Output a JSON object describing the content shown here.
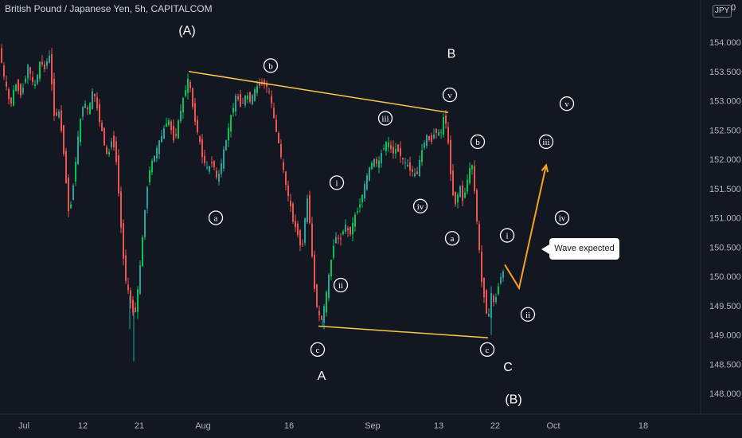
{
  "header": {
    "title": "British Pound / Japanese Yen, 5h, CAPITALCOM",
    "currency": "JPY",
    "currency_top": "0"
  },
  "colors": {
    "up": "#26a69a",
    "up_bright": "#00c853",
    "down": "#ef5350",
    "trendline": "#f9c74f",
    "forecast": "#f7a21b",
    "axis_text": "#b2b5be",
    "label": "#ffffff",
    "background": "#131722"
  },
  "callout": {
    "text": "Wave expected"
  },
  "chart_data": {
    "type": "candlestick",
    "title": "British Pound / Japanese Yen, 5h, CAPITALCOM",
    "y_axis": {
      "unit": "JPY",
      "ticks": [
        "154.000",
        "153.500",
        "153.000",
        "152.500",
        "152.000",
        "151.500",
        "151.000",
        "150.500",
        "150.000",
        "149.500",
        "149.000",
        "148.500",
        "148.000"
      ],
      "range": [
        147.7,
        154.4
      ]
    },
    "x_axis": {
      "ticks": [
        "Jul",
        "12",
        "21",
        "Aug",
        "16",
        "Sep",
        "13",
        "22",
        "Oct",
        "18"
      ]
    },
    "price_path": [
      [
        0,
        153.9
      ],
      [
        6,
        153.4
      ],
      [
        14,
        152.9
      ],
      [
        20,
        153.3
      ],
      [
        28,
        153.1
      ],
      [
        36,
        153.6
      ],
      [
        44,
        153.2
      ],
      [
        52,
        153.7
      ],
      [
        58,
        153.5
      ],
      [
        62,
        153.9
      ],
      [
        66,
        153.3
      ],
      [
        70,
        152.6
      ],
      [
        74,
        152.9
      ],
      [
        80,
        152.3
      ],
      [
        84,
        151.6
      ],
      [
        88,
        151.0
      ],
      [
        94,
        151.7
      ],
      [
        100,
        152.5
      ],
      [
        106,
        153.0
      ],
      [
        112,
        152.8
      ],
      [
        118,
        153.2
      ],
      [
        124,
        152.8
      ],
      [
        130,
        152.4
      ],
      [
        136,
        152.0
      ],
      [
        142,
        152.4
      ],
      [
        148,
        151.9
      ],
      [
        152,
        151.0
      ],
      [
        158,
        150.0
      ],
      [
        164,
        149.6
      ],
      [
        170,
        149.3
      ],
      [
        176,
        150.0
      ],
      [
        182,
        151.0
      ],
      [
        188,
        151.8
      ],
      [
        196,
        152.1
      ],
      [
        204,
        152.4
      ],
      [
        212,
        152.7
      ],
      [
        220,
        152.3
      ],
      [
        226,
        152.7
      ],
      [
        232,
        153.1
      ],
      [
        238,
        153.4
      ],
      [
        244,
        152.8
      ],
      [
        250,
        152.4
      ],
      [
        256,
        152.0
      ],
      [
        262,
        151.8
      ],
      [
        268,
        152.0
      ],
      [
        274,
        151.6
      ],
      [
        280,
        152.0
      ],
      [
        286,
        152.4
      ],
      [
        292,
        152.8
      ],
      [
        298,
        153.1
      ],
      [
        304,
        152.9
      ],
      [
        310,
        153.1
      ],
      [
        316,
        153.0
      ],
      [
        322,
        153.2
      ],
      [
        328,
        153.3
      ],
      [
        334,
        153.3
      ],
      [
        340,
        153.1
      ],
      [
        346,
        152.6
      ],
      [
        352,
        152.2
      ],
      [
        358,
        151.7
      ],
      [
        364,
        151.3
      ],
      [
        370,
        150.9
      ],
      [
        376,
        150.7
      ],
      [
        380,
        150.4
      ],
      [
        384,
        151.0
      ],
      [
        388,
        151.4
      ],
      [
        392,
        150.5
      ],
      [
        396,
        149.8
      ],
      [
        400,
        149.4
      ],
      [
        404,
        149.2
      ],
      [
        410,
        149.6
      ],
      [
        416,
        150.2
      ],
      [
        422,
        150.7
      ],
      [
        428,
        150.6
      ],
      [
        434,
        150.9
      ],
      [
        440,
        150.7
      ],
      [
        446,
        151.0
      ],
      [
        452,
        151.2
      ],
      [
        458,
        151.5
      ],
      [
        464,
        151.8
      ],
      [
        470,
        152.0
      ],
      [
        476,
        151.9
      ],
      [
        482,
        152.2
      ],
      [
        488,
        152.3
      ],
      [
        494,
        152.1
      ],
      [
        500,
        152.2
      ],
      [
        506,
        152.0
      ],
      [
        512,
        151.9
      ],
      [
        518,
        151.8
      ],
      [
        524,
        151.7
      ],
      [
        530,
        152.1
      ],
      [
        536,
        152.4
      ],
      [
        542,
        152.3
      ],
      [
        548,
        152.5
      ],
      [
        554,
        152.4
      ],
      [
        558,
        152.7
      ],
      [
        562,
        152.6
      ],
      [
        566,
        151.9
      ],
      [
        570,
        151.4
      ],
      [
        574,
        151.2
      ],
      [
        578,
        151.6
      ],
      [
        582,
        151.3
      ],
      [
        586,
        151.5
      ],
      [
        590,
        151.8
      ],
      [
        594,
        151.9
      ],
      [
        598,
        151.3
      ],
      [
        602,
        150.6
      ],
      [
        606,
        149.9
      ],
      [
        610,
        149.6
      ],
      [
        614,
        149.2
      ],
      [
        618,
        149.7
      ],
      [
        622,
        149.5
      ],
      [
        626,
        149.8
      ],
      [
        630,
        150.0
      ],
      [
        634,
        150.1
      ]
    ],
    "wicks_extra": [
      {
        "x": 168,
        "low": 148.55
      },
      {
        "x": 163,
        "low": 149.1
      },
      {
        "x": 405,
        "low": 149.15
      },
      {
        "x": 617,
        "low": 149.0
      }
    ],
    "trendlines": [
      {
        "from": [
          237,
          153.5
        ],
        "to": [
          563,
          152.8
        ]
      },
      {
        "from": [
          400,
          149.15
        ],
        "to": [
          613,
          148.95
        ]
      }
    ],
    "forecast_path": [
      [
        634,
        150.2
      ],
      [
        652,
        149.8
      ],
      [
        686,
        151.9
      ]
    ],
    "wave_labels": [
      {
        "text": "(A)",
        "x": 235,
        "y": 154.2,
        "circled": false
      },
      {
        "text": "b",
        "x": 340,
        "y": 153.6,
        "circled": true
      },
      {
        "text": "a",
        "x": 271,
        "y": 151.0,
        "circled": true
      },
      {
        "text": "B",
        "x": 567,
        "y": 153.8,
        "circled": false
      },
      {
        "text": "v",
        "x": 565,
        "y": 153.1,
        "circled": true
      },
      {
        "text": "iii",
        "x": 484,
        "y": 152.7,
        "circled": true
      },
      {
        "text": "i",
        "x": 423,
        "y": 151.6,
        "circled": true
      },
      {
        "text": "iv",
        "x": 528,
        "y": 151.2,
        "circled": true
      },
      {
        "text": "ii",
        "x": 428,
        "y": 149.85,
        "circled": true
      },
      {
        "text": "c",
        "x": 399,
        "y": 148.75,
        "circled": true
      },
      {
        "text": "A",
        "x": 404,
        "y": 148.3,
        "circled": false
      },
      {
        "text": "b",
        "x": 600,
        "y": 152.3,
        "circled": true
      },
      {
        "text": "a",
        "x": 568,
        "y": 150.65,
        "circled": true
      },
      {
        "text": "i",
        "x": 637,
        "y": 150.7,
        "circled": true
      },
      {
        "text": "c",
        "x": 612,
        "y": 148.75,
        "circled": true
      },
      {
        "text": "C",
        "x": 638,
        "y": 148.45,
        "circled": false
      },
      {
        "text": "(B)",
        "x": 645,
        "y": 147.9,
        "circled": false
      },
      {
        "text": "v",
        "x": 712,
        "y": 152.95,
        "circled": true
      },
      {
        "text": "iii",
        "x": 686,
        "y": 152.3,
        "circled": true
      },
      {
        "text": "iv",
        "x": 706,
        "y": 151.0,
        "circled": true
      },
      {
        "text": "ii",
        "x": 663,
        "y": 149.35,
        "circled": true
      }
    ],
    "grid": false,
    "legend": "none"
  }
}
